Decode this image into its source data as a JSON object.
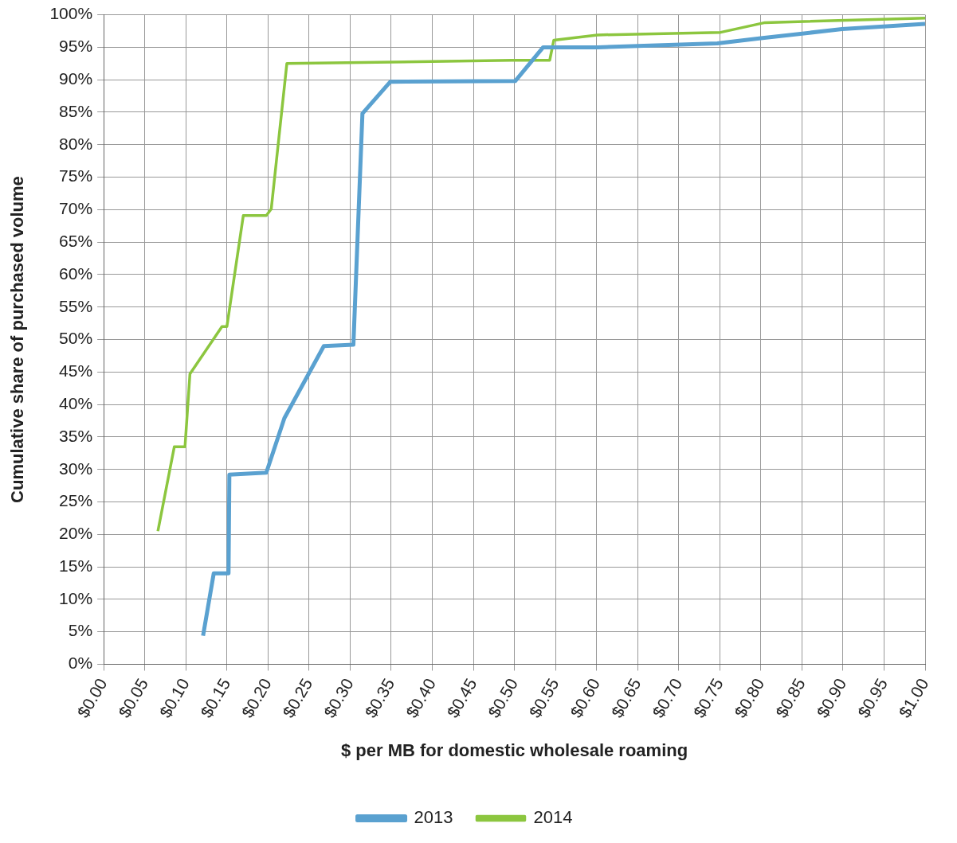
{
  "chart_data": {
    "type": "line",
    "xlabel": "$ per MB for domestic wholesale roaming",
    "ylabel": "Cumulative share of purchased volume",
    "xlim": [
      0,
      1
    ],
    "ylim": [
      0,
      100
    ],
    "xticks": [
      {
        "value": 0,
        "label": "$0.00"
      },
      {
        "value": 0.05,
        "label": "$0.05"
      },
      {
        "value": 0.1,
        "label": "$0.10"
      },
      {
        "value": 0.15,
        "label": "$0.15"
      },
      {
        "value": 0.2,
        "label": "$0.20"
      },
      {
        "value": 0.25,
        "label": "$0.25"
      },
      {
        "value": 0.3,
        "label": "$0.30"
      },
      {
        "value": 0.35,
        "label": "$0.35"
      },
      {
        "value": 0.4,
        "label": "$0.40"
      },
      {
        "value": 0.45,
        "label": "$0.45"
      },
      {
        "value": 0.5,
        "label": "$0.50"
      },
      {
        "value": 0.55,
        "label": "$0.55"
      },
      {
        "value": 0.6,
        "label": "$0.60"
      },
      {
        "value": 0.65,
        "label": "$0.65"
      },
      {
        "value": 0.7,
        "label": "$0.70"
      },
      {
        "value": 0.75,
        "label": "$0.75"
      },
      {
        "value": 0.8,
        "label": "$0.80"
      },
      {
        "value": 0.85,
        "label": "$0.85"
      },
      {
        "value": 0.9,
        "label": "$0.90"
      },
      {
        "value": 0.95,
        "label": "$0.95"
      },
      {
        "value": 1,
        "label": "$1.00"
      }
    ],
    "yticks": [
      {
        "value": 0,
        "label": "0%"
      },
      {
        "value": 5,
        "label": "5%"
      },
      {
        "value": 10,
        "label": "10%"
      },
      {
        "value": 15,
        "label": "15%"
      },
      {
        "value": 20,
        "label": "20%"
      },
      {
        "value": 25,
        "label": "25%"
      },
      {
        "value": 30,
        "label": "30%"
      },
      {
        "value": 35,
        "label": "35%"
      },
      {
        "value": 40,
        "label": "40%"
      },
      {
        "value": 45,
        "label": "45%"
      },
      {
        "value": 50,
        "label": "50%"
      },
      {
        "value": 55,
        "label": "55%"
      },
      {
        "value": 60,
        "label": "60%"
      },
      {
        "value": 65,
        "label": "65%"
      },
      {
        "value": 70,
        "label": "70%"
      },
      {
        "value": 75,
        "label": "75%"
      },
      {
        "value": 80,
        "label": "80%"
      },
      {
        "value": 85,
        "label": "85%"
      },
      {
        "value": 90,
        "label": "90%"
      },
      {
        "value": 95,
        "label": "95%"
      },
      {
        "value": 100,
        "label": "100%"
      }
    ],
    "grid": true,
    "legend": "bottom",
    "marker": "none",
    "line_style": "solid",
    "series": [
      {
        "name": "2013",
        "color": "#5aa1d0",
        "x": [
          0.121,
          0.134,
          0.152,
          0.153,
          0.198,
          0.22,
          0.268,
          0.304,
          0.315,
          0.349,
          0.501,
          0.535,
          0.601,
          0.747,
          0.8,
          0.899,
          1.0
        ],
        "values": [
          4.4,
          14.0,
          14.0,
          29.2,
          29.5,
          37.9,
          49.0,
          49.2,
          84.8,
          89.7,
          89.8,
          95.0,
          95.0,
          95.6,
          96.4,
          97.8,
          98.6
        ]
      },
      {
        "name": "2014",
        "color": "#8cc63f",
        "x": [
          0.066,
          0.086,
          0.099,
          0.105,
          0.144,
          0.15,
          0.17,
          0.198,
          0.204,
          0.223,
          0.497,
          0.543,
          0.548,
          0.601,
          0.751,
          0.805,
          1.0
        ],
        "values": [
          20.5,
          33.5,
          33.5,
          44.7,
          52.0,
          52.0,
          69.1,
          69.1,
          70.1,
          92.5,
          93.0,
          93.0,
          96.1,
          96.9,
          97.3,
          98.8,
          99.5
        ]
      }
    ]
  }
}
